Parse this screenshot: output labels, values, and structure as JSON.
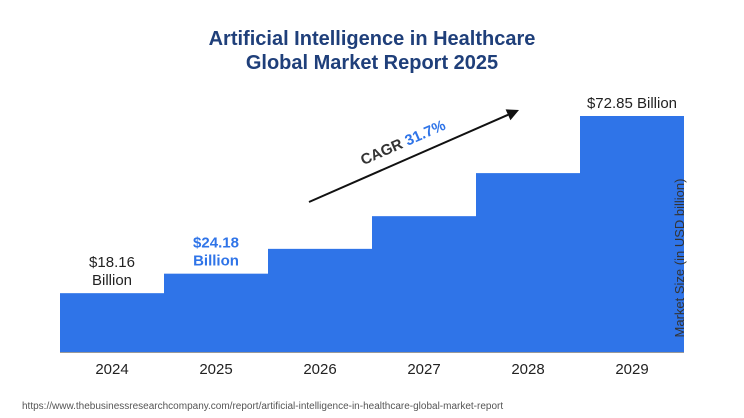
{
  "title_line1": "Artificial Intelligence in Healthcare",
  "title_line2": "Global Market Report 2025",
  "source_url": "https://www.thebusinessresearchcompany.com/report/artificial-intelligence-in-healthcare-global-market-report",
  "colors": {
    "bar": "#2f74e8",
    "title": "#1f3f7a",
    "highlight_label": "#2f74e8",
    "text": "#222222",
    "axis": "#999999"
  },
  "chart_data": {
    "type": "bar",
    "title": "Artificial Intelligence in Healthcare Global Market Report 2025",
    "xlabel": "",
    "ylabel": "Market Size (in USD billion)",
    "categories": [
      "2024",
      "2025",
      "2026",
      "2027",
      "2028",
      "2029"
    ],
    "values": [
      18.16,
      24.18,
      31.84,
      41.93,
      55.22,
      72.85
    ],
    "ylim": [
      0,
      72.85
    ],
    "grid": false,
    "labels": [
      {
        "index": 0,
        "lines": [
          "$18.16",
          "Billion"
        ],
        "highlight": false
      },
      {
        "index": 1,
        "lines": [
          "$24.18",
          "Billion"
        ],
        "highlight": true
      },
      {
        "index": 5,
        "lines": [
          "$72.85 Billion"
        ],
        "highlight": false
      }
    ],
    "cagr": {
      "prefix": "CAGR ",
      "value": "31.7%"
    }
  }
}
